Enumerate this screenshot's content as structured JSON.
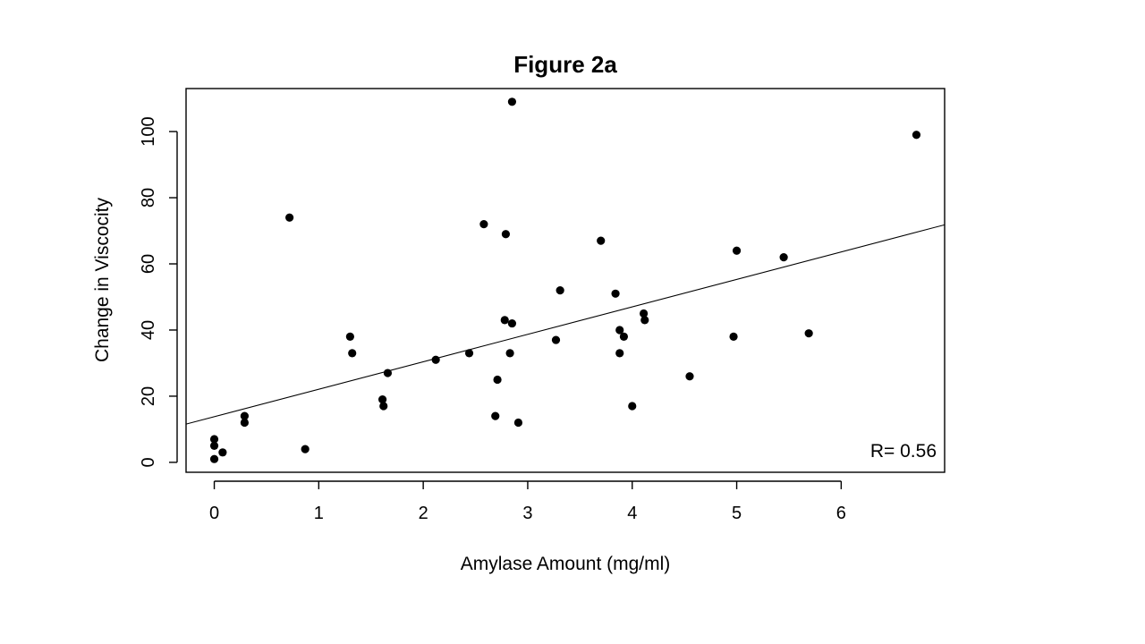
{
  "chart_data": {
    "type": "scatter",
    "title": "Figure 2a",
    "xlabel": "Amylase Amount (mg/ml)",
    "ylabel": "Change in Viscocity",
    "xlim": [
      -0.27,
      6.99
    ],
    "ylim": [
      -3,
      113
    ],
    "xticks": [
      0,
      1,
      2,
      3,
      4,
      5,
      6
    ],
    "xtick_labels": [
      "0",
      "1",
      "2",
      "3",
      "4",
      "5",
      "6"
    ],
    "yticks": [
      0,
      20,
      40,
      60,
      80,
      100
    ],
    "ytick_labels": [
      "0",
      "20",
      "40",
      "60",
      "80",
      "100"
    ],
    "grid": false,
    "annotation": "R= 0.56",
    "regression_line": {
      "intercept": 13.8,
      "slope": 8.3
    },
    "points": [
      {
        "x": 0.0,
        "y": 7
      },
      {
        "x": 0.0,
        "y": 5
      },
      {
        "x": 0.0,
        "y": 1
      },
      {
        "x": 0.08,
        "y": 3
      },
      {
        "x": 0.29,
        "y": 14
      },
      {
        "x": 0.29,
        "y": 12
      },
      {
        "x": 0.72,
        "y": 74
      },
      {
        "x": 0.87,
        "y": 4
      },
      {
        "x": 1.3,
        "y": 38
      },
      {
        "x": 1.32,
        "y": 33
      },
      {
        "x": 1.61,
        "y": 19
      },
      {
        "x": 1.62,
        "y": 17
      },
      {
        "x": 1.66,
        "y": 27
      },
      {
        "x": 2.12,
        "y": 31
      },
      {
        "x": 2.44,
        "y": 33
      },
      {
        "x": 2.58,
        "y": 72
      },
      {
        "x": 2.69,
        "y": 14
      },
      {
        "x": 2.71,
        "y": 25
      },
      {
        "x": 2.78,
        "y": 43
      },
      {
        "x": 2.79,
        "y": 69
      },
      {
        "x": 2.83,
        "y": 33
      },
      {
        "x": 2.85,
        "y": 42
      },
      {
        "x": 2.85,
        "y": 109
      },
      {
        "x": 2.91,
        "y": 12
      },
      {
        "x": 3.27,
        "y": 37
      },
      {
        "x": 3.31,
        "y": 52
      },
      {
        "x": 3.7,
        "y": 67
      },
      {
        "x": 3.84,
        "y": 51
      },
      {
        "x": 3.88,
        "y": 40
      },
      {
        "x": 3.88,
        "y": 33
      },
      {
        "x": 3.92,
        "y": 38
      },
      {
        "x": 4.0,
        "y": 17
      },
      {
        "x": 4.11,
        "y": 45
      },
      {
        "x": 4.12,
        "y": 43
      },
      {
        "x": 4.55,
        "y": 26
      },
      {
        "x": 4.97,
        "y": 38
      },
      {
        "x": 5.0,
        "y": 64
      },
      {
        "x": 5.45,
        "y": 62
      },
      {
        "x": 5.69,
        "y": 39
      },
      {
        "x": 6.72,
        "y": 99
      }
    ]
  }
}
